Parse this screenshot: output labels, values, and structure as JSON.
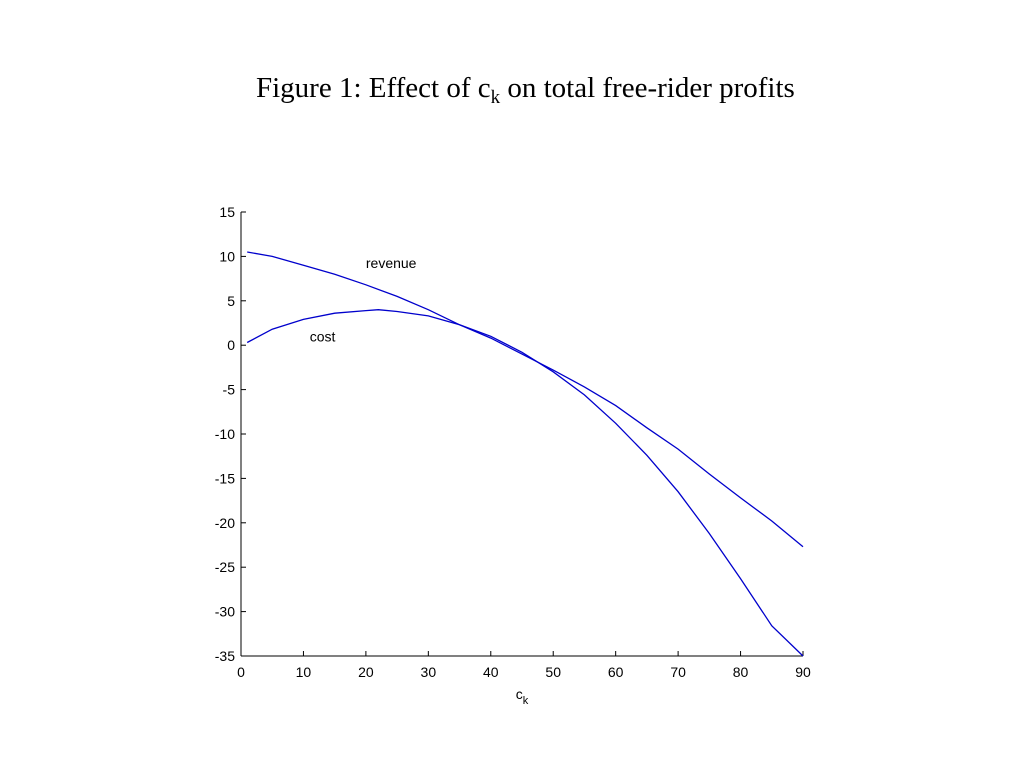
{
  "chart_data": {
    "type": "line",
    "title": {
      "prefix": "Figure 1: Effect of c",
      "sub": "k",
      "suffix": " on total free-rider profits"
    },
    "xlabel": {
      "main": "c",
      "sub": "k"
    },
    "ylabel": "",
    "xlim": [
      0,
      90
    ],
    "ylim": [
      -35,
      15
    ],
    "xticks": [
      "0",
      "10",
      "20",
      "30",
      "40",
      "50",
      "60",
      "70",
      "80",
      "90"
    ],
    "yticks": [
      "15",
      "10",
      "5",
      "0",
      "-5",
      "-10",
      "-15",
      "-20",
      "-25",
      "-30",
      "-35"
    ],
    "grid": false,
    "legend": "none",
    "line_color": "#0000cc",
    "series": [
      {
        "annotation": "revenue",
        "x": [
          1,
          5,
          10,
          15,
          20,
          25,
          30,
          35,
          40,
          45,
          50,
          55,
          60,
          65,
          70,
          75,
          80,
          85,
          90
        ],
        "y": [
          10.5,
          10.0,
          9.0,
          8.0,
          6.8,
          5.5,
          4.0,
          2.3,
          0.8,
          -1.0,
          -2.8,
          -4.7,
          -6.8,
          -9.3,
          -11.7,
          -14.5,
          -17.2,
          -19.8,
          -22.7
        ]
      },
      {
        "annotation": "cost",
        "x": [
          1,
          5,
          10,
          15,
          20,
          22,
          25,
          30,
          35,
          40,
          45,
          50,
          55,
          60,
          65,
          70,
          75,
          80,
          85,
          90
        ],
        "y": [
          0.3,
          1.8,
          2.9,
          3.6,
          3.9,
          4.0,
          3.8,
          3.3,
          2.3,
          1.0,
          -0.8,
          -3.0,
          -5.6,
          -8.8,
          -12.4,
          -16.5,
          -21.2,
          -26.3,
          -31.6,
          -35.0
        ]
      }
    ]
  }
}
